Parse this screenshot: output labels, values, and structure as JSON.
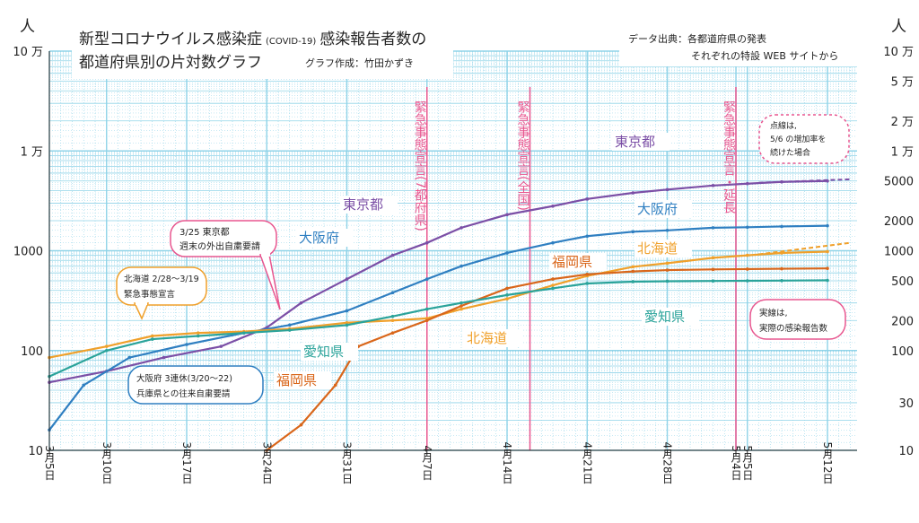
{
  "colors": {
    "tokyo": "#7b4fa6",
    "osaka": "#2f7fc1",
    "hokkaido": "#f0a02a",
    "fukuoka": "#d9661a",
    "aichi": "#2aa39a",
    "emergency": "#e8568f",
    "grid": "#8fd3e8"
  },
  "header": {
    "title_line1": "新型コロナウイルス感染症",
    "title_covid": "(COVID-19)",
    "title_line1b": "感染報告者数の",
    "title_line2": "都道府県別の片対数グラフ",
    "author": "グラフ作成：竹田かずき",
    "source_line1": "データ出典：各都道府県の発表",
    "source_line2": "それぞれの特設 WEB サイトから"
  },
  "chart_data": {
    "type": "line",
    "yscale": "log",
    "ylim": [
      10,
      100000
    ],
    "y_unit": "人",
    "y_ticks_left": [
      "10 万",
      "1 万",
      "1000",
      "100",
      "10"
    ],
    "y_ticks_right": [
      "10 万",
      "5 万",
      "2 万",
      "1 万",
      "5000",
      "2000",
      "1000",
      "500",
      "200",
      "100",
      "30",
      "10"
    ],
    "x_ticks": [
      {
        "date": "3/5",
        "label": "3月5日"
      },
      {
        "date": "3/10",
        "label": "3月10日"
      },
      {
        "date": "3/17",
        "label": "3月17日"
      },
      {
        "date": "3/24",
        "label": "3月24日"
      },
      {
        "date": "3/31",
        "label": "3月31日"
      },
      {
        "date": "4/7",
        "label": "4月7日"
      },
      {
        "date": "4/14",
        "label": "4月14日"
      },
      {
        "date": "4/21",
        "label": "4月21日"
      },
      {
        "date": "4/28",
        "label": "4月28日"
      },
      {
        "date": "5/4",
        "label": "5月4日"
      },
      {
        "date": "5/5",
        "label": "5月5日"
      },
      {
        "date": "5/12",
        "label": "5月12日"
      }
    ],
    "events": [
      {
        "date": "4/7",
        "label": "緊急事態宣言(7都府県)"
      },
      {
        "date": "4/16",
        "label": "緊急事態宣言(全国)"
      },
      {
        "date": "5/4",
        "label": "緊急事態宣言・延長"
      }
    ],
    "series": [
      {
        "name": "東京都",
        "color_key": "tokyo",
        "points": [
          [
            "3/5",
            48
          ],
          [
            "3/10",
            62
          ],
          [
            "3/15",
            85
          ],
          [
            "3/20",
            110
          ],
          [
            "3/24",
            170
          ],
          [
            "3/27",
            300
          ],
          [
            "3/31",
            520
          ],
          [
            "4/4",
            900
          ],
          [
            "4/7",
            1200
          ],
          [
            "4/10",
            1700
          ],
          [
            "4/14",
            2300
          ],
          [
            "4/18",
            2800
          ],
          [
            "4/21",
            3300
          ],
          [
            "4/25",
            3800
          ],
          [
            "4/28",
            4100
          ],
          [
            "5/2",
            4500
          ],
          [
            "5/5",
            4700
          ],
          [
            "5/8",
            4900
          ],
          [
            "5/12",
            5000
          ]
        ],
        "trend_dates": [
          "5/6",
          "5/14"
        ],
        "trend_values": [
          4800,
          5200
        ]
      },
      {
        "name": "大阪府",
        "color_key": "osaka",
        "points": [
          [
            "3/5",
            16
          ],
          [
            "3/8",
            45
          ],
          [
            "3/12",
            85
          ],
          [
            "3/17",
            115
          ],
          [
            "3/22",
            150
          ],
          [
            "3/26",
            180
          ],
          [
            "3/31",
            250
          ],
          [
            "4/4",
            380
          ],
          [
            "4/7",
            520
          ],
          [
            "4/10",
            700
          ],
          [
            "4/14",
            950
          ],
          [
            "4/18",
            1200
          ],
          [
            "4/21",
            1400
          ],
          [
            "4/25",
            1550
          ],
          [
            "4/28",
            1600
          ],
          [
            "5/2",
            1700
          ],
          [
            "5/5",
            1720
          ],
          [
            "5/8",
            1750
          ],
          [
            "5/12",
            1780
          ]
        ],
        "trend_dates": [],
        "trend_values": []
      },
      {
        "name": "北海道",
        "color_key": "hokkaido",
        "points": [
          [
            "3/5",
            85
          ],
          [
            "3/10",
            110
          ],
          [
            "3/14",
            140
          ],
          [
            "3/18",
            150
          ],
          [
            "3/22",
            155
          ],
          [
            "3/26",
            165
          ],
          [
            "3/31",
            190
          ],
          [
            "4/4",
            200
          ],
          [
            "4/7",
            210
          ],
          [
            "4/10",
            260
          ],
          [
            "4/14",
            330
          ],
          [
            "4/18",
            450
          ],
          [
            "4/21",
            560
          ],
          [
            "4/25",
            690
          ],
          [
            "4/28",
            750
          ],
          [
            "5/2",
            850
          ],
          [
            "5/5",
            900
          ],
          [
            "5/8",
            950
          ],
          [
            "5/12",
            980
          ]
        ],
        "trend_dates": [
          "5/6",
          "5/14"
        ],
        "trend_values": [
          920,
          1200
        ]
      },
      {
        "name": "福岡県",
        "color_key": "fukuoka",
        "points": [
          [
            "3/24",
            10
          ],
          [
            "3/27",
            18
          ],
          [
            "3/30",
            45
          ],
          [
            "4/1",
            110
          ],
          [
            "4/4",
            150
          ],
          [
            "4/7",
            200
          ],
          [
            "4/10",
            280
          ],
          [
            "4/14",
            420
          ],
          [
            "4/18",
            520
          ],
          [
            "4/21",
            580
          ],
          [
            "4/25",
            620
          ],
          [
            "4/28",
            640
          ],
          [
            "5/2",
            650
          ],
          [
            "5/5",
            655
          ],
          [
            "5/8",
            660
          ],
          [
            "5/12",
            665
          ]
        ],
        "trend_dates": [],
        "trend_values": []
      },
      {
        "name": "愛知県",
        "color_key": "aichi",
        "points": [
          [
            "3/5",
            55
          ],
          [
            "3/10",
            100
          ],
          [
            "3/14",
            130
          ],
          [
            "3/18",
            140
          ],
          [
            "3/22",
            150
          ],
          [
            "3/26",
            160
          ],
          [
            "3/31",
            180
          ],
          [
            "4/4",
            220
          ],
          [
            "4/7",
            260
          ],
          [
            "4/10",
            300
          ],
          [
            "4/14",
            360
          ],
          [
            "4/18",
            420
          ],
          [
            "4/21",
            470
          ],
          [
            "4/25",
            490
          ],
          [
            "4/28",
            495
          ],
          [
            "5/2",
            498
          ],
          [
            "5/5",
            500
          ],
          [
            "5/8",
            502
          ],
          [
            "5/12",
            505
          ]
        ],
        "trend_dates": [],
        "trend_values": []
      }
    ],
    "series_labels": [
      {
        "name": "東京都",
        "color_key": "tokyo"
      },
      {
        "name": "東京都",
        "color_key": "tokyo"
      },
      {
        "name": "大阪府",
        "color_key": "osaka"
      },
      {
        "name": "大阪府",
        "color_key": "osaka"
      },
      {
        "name": "北海道",
        "color_key": "hokkaido"
      },
      {
        "name": "北海道",
        "color_key": "hokkaido"
      },
      {
        "name": "福岡県",
        "color_key": "fukuoka"
      },
      {
        "name": "福岡県",
        "color_key": "fukuoka"
      },
      {
        "name": "愛知県",
        "color_key": "aichi"
      },
      {
        "name": "愛知県",
        "color_key": "aichi"
      }
    ]
  },
  "annotations": {
    "tokyo_request": {
      "line1": "3/25 東京都",
      "line2": "週末の外出自粛要請"
    },
    "hokkaido_emergency": {
      "line1": "北海道 2/28〜3/19",
      "line2": "緊急事態宣言"
    },
    "osaka_hyogo": {
      "line1": "大阪府 3連休(3/20〜22)",
      "line2": "兵庫県との往来自粛要請"
    },
    "dotted_note": {
      "line1": "点線は,",
      "line2": "5/6 の増加率を",
      "line3": "続けた場合"
    },
    "solid_note": {
      "line1": "実線は,",
      "line2": "実際の感染報告数"
    }
  }
}
